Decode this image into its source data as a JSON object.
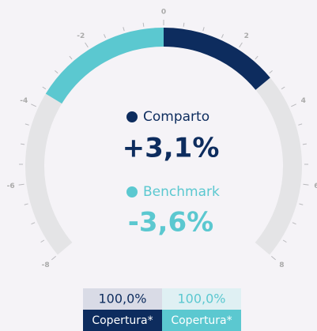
{
  "chart_data": {
    "type": "gauge",
    "ylim": [
      -8,
      8
    ],
    "yticks": [
      -8,
      -6,
      -4,
      -2,
      0,
      2,
      4,
      6,
      8
    ],
    "minor_ticks": [
      -7.5,
      -7,
      -6.5,
      -5.5,
      -5,
      -4.5,
      -3.5,
      -3,
      -2.5,
      -1.5,
      -1,
      -0.5,
      0.5,
      1,
      1.5,
      2.5,
      3,
      3.5,
      4.5,
      5,
      5.5,
      6.5,
      7,
      7.5
    ],
    "track_color": "#e4e4e6",
    "series": [
      {
        "name": "Comparto",
        "color": "#0d2c5e",
        "values": [
          3.1
        ],
        "value_labels": [
          "+3,1%"
        ],
        "coverage": "100,0%",
        "coverage_label": "Copertura*"
      },
      {
        "name": "Benchmark",
        "color": "#5bc8d0",
        "values": [
          -3.6
        ],
        "value_labels": [
          "-3,6%"
        ],
        "coverage": "100,0%",
        "coverage_label": "Copertura*"
      }
    ]
  }
}
